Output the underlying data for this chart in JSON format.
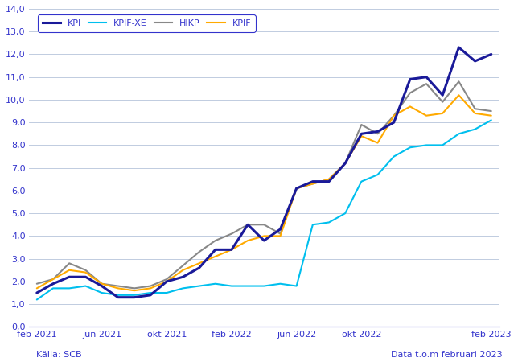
{
  "source_text": "Källa: SCB",
  "data_text": "Data t.o.m februari 2023",
  "ylim": [
    0.0,
    14.0
  ],
  "yticks": [
    0.0,
    1.0,
    2.0,
    3.0,
    4.0,
    5.0,
    6.0,
    7.0,
    8.0,
    9.0,
    10.0,
    11.0,
    12.0,
    13.0,
    14.0
  ],
  "background_color": "#ffffff",
  "grid_color": "#c0cce0",
  "axis_color": "#3333cc",
  "text_color": "#3333cc",
  "series_order": [
    "KPI",
    "KPIF-XE",
    "HIKP",
    "KPIF"
  ],
  "series": {
    "KPI": {
      "color": "#1a1a99",
      "linewidth": 2.2,
      "zorder": 5,
      "values": [
        1.5,
        1.9,
        2.2,
        2.2,
        1.8,
        1.3,
        1.3,
        1.4,
        2.0,
        2.2,
        2.6,
        3.4,
        3.4,
        4.5,
        3.8,
        4.3,
        6.1,
        6.4,
        6.4,
        7.2,
        8.5,
        8.6,
        9.0,
        10.9,
        11.0,
        10.2,
        12.3,
        11.7,
        12.0
      ]
    },
    "KPIF-XE": {
      "color": "#00bfee",
      "linewidth": 1.5,
      "zorder": 3,
      "values": [
        1.2,
        1.7,
        1.7,
        1.8,
        1.5,
        1.4,
        1.4,
        1.5,
        1.5,
        1.7,
        1.8,
        1.9,
        1.8,
        1.8,
        1.8,
        1.9,
        1.8,
        4.5,
        4.6,
        5.0,
        6.4,
        6.7,
        7.5,
        7.9,
        8.0,
        8.0,
        8.5,
        8.7,
        9.1
      ]
    },
    "HIKP": {
      "color": "#888888",
      "linewidth": 1.5,
      "zorder": 4,
      "values": [
        1.9,
        2.1,
        2.8,
        2.5,
        1.9,
        1.8,
        1.7,
        1.8,
        2.1,
        2.7,
        3.3,
        3.8,
        4.1,
        4.5,
        4.5,
        4.1,
        6.1,
        6.3,
        6.5,
        7.2,
        8.9,
        8.5,
        9.3,
        10.3,
        10.7,
        9.9,
        10.8,
        9.6,
        9.5
      ]
    },
    "KPIF": {
      "color": "#ffaa00",
      "linewidth": 1.5,
      "zorder": 4,
      "values": [
        1.7,
        2.1,
        2.5,
        2.4,
        1.9,
        1.7,
        1.6,
        1.7,
        2.0,
        2.5,
        2.8,
        3.1,
        3.4,
        3.8,
        4.0,
        4.0,
        6.1,
        6.3,
        6.5,
        7.2,
        8.4,
        8.1,
        9.3,
        9.7,
        9.3,
        9.4,
        10.2,
        9.4,
        9.3
      ]
    }
  },
  "n_points": 29,
  "xtick_positions": [
    0,
    4,
    8,
    12,
    16,
    20,
    28
  ],
  "xtick_labels": [
    "feb 2021",
    "jun 2021",
    "okt 2021",
    "feb 2022",
    "jun 2022",
    "okt 2022",
    "feb 2023"
  ],
  "xlim": [
    -0.5,
    28.5
  ]
}
